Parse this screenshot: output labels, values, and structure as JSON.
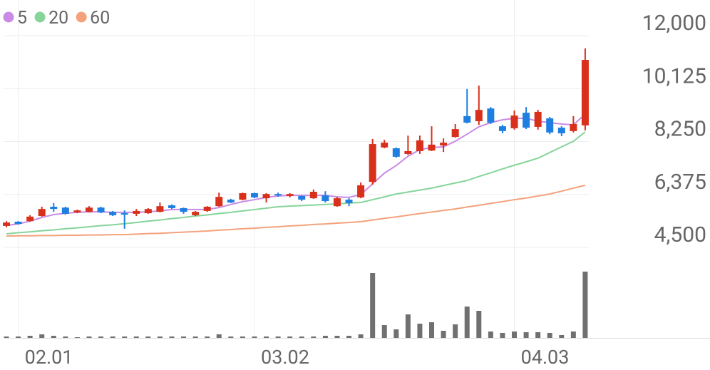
{
  "chart_data": {
    "type": "candlestick",
    "categories": [
      null,
      "02.01",
      null,
      null,
      null,
      null,
      null,
      null,
      null,
      null,
      null,
      null,
      null,
      null,
      null,
      null,
      null,
      null,
      null,
      null,
      null,
      "03.02",
      null,
      null,
      null,
      null,
      null,
      null,
      null,
      null,
      null,
      null,
      null,
      null,
      null,
      null,
      null,
      null,
      null,
      null,
      null,
      null,
      null,
      "04.03",
      null,
      null,
      null,
      null,
      null,
      null
    ],
    "open": [
      5260,
      5410,
      5430,
      5610,
      5940,
      5910,
      5740,
      5760,
      5910,
      5760,
      5710,
      5690,
      5710,
      5760,
      5990,
      5890,
      5640,
      5790,
      5960,
      6190,
      6190,
      6420,
      6240,
      6390,
      6320,
      6320,
      6240,
      6340,
      5960,
      6190,
      6270,
      6820,
      8040,
      8010,
      7810,
      7910,
      7930,
      8110,
      8410,
      9150,
      8970,
      9420,
      8790,
      8720,
      9270,
      8770,
      9070,
      8740,
      8620,
      8820
    ],
    "high": [
      5430,
      5430,
      5640,
      5940,
      6070,
      5940,
      5840,
      5960,
      5940,
      5790,
      5810,
      5860,
      5890,
      6090,
      6020,
      5910,
      5790,
      5960,
      6440,
      6220,
      6440,
      6440,
      6420,
      6440,
      6420,
      6340,
      6550,
      6490,
      6290,
      6240,
      6800,
      8340,
      8310,
      8040,
      8460,
      8460,
      8790,
      8360,
      8870,
      10110,
      10230,
      9470,
      8840,
      9350,
      9470,
      9370,
      9120,
      8790,
      9150,
      11550
    ],
    "low": [
      5210,
      5310,
      5410,
      5590,
      5760,
      5660,
      5710,
      5740,
      5710,
      5610,
      5160,
      5610,
      5690,
      5740,
      5860,
      5690,
      5610,
      5760,
      5940,
      6070,
      6170,
      6240,
      6090,
      6290,
      6270,
      6140,
      6220,
      6090,
      5940,
      5960,
      6240,
      6720,
      8010,
      7680,
      7780,
      7810,
      7910,
      7880,
      8390,
      8890,
      8840,
      8870,
      8540,
      8670,
      8690,
      8670,
      8510,
      8440,
      8570,
      8640
    ],
    "close": [
      5380,
      5330,
      5590,
      5860,
      5860,
      5690,
      5810,
      5910,
      5740,
      5640,
      5690,
      5790,
      5860,
      5960,
      5890,
      5760,
      5760,
      5940,
      6290,
      6090,
      6420,
      6270,
      6390,
      6340,
      6390,
      6190,
      6470,
      6140,
      6240,
      6070,
      6700,
      8160,
      8210,
      7710,
      7910,
      8290,
      8140,
      8210,
      8690,
      8920,
      9370,
      8920,
      8620,
      9170,
      8740,
      9300,
      8570,
      8540,
      8870,
      11140
    ],
    "up_color": "#d9301c",
    "down_color": "#1f7fe0",
    "series": [
      {
        "name": "5",
        "color": "#c98be6",
        "values": [
          5280,
          5330,
          5430,
          5560,
          5660,
          5710,
          5740,
          5760,
          5760,
          5740,
          5740,
          5740,
          5760,
          5790,
          5840,
          5840,
          5840,
          5840,
          5910,
          6020,
          6120,
          6190,
          6270,
          6320,
          6340,
          6340,
          6340,
          6340,
          6290,
          6270,
          6370,
          6750,
          7130,
          7400,
          7730,
          7960,
          8040,
          8060,
          8260,
          8510,
          8770,
          8920,
          9020,
          9070,
          9070,
          8970,
          8920,
          8870,
          8840,
          9220
        ]
      },
      {
        "name": "20",
        "color": "#86d49a",
        "values": [
          4980,
          5020,
          5050,
          5090,
          5120,
          5160,
          5190,
          5230,
          5270,
          5300,
          5340,
          5380,
          5430,
          5470,
          5520,
          5560,
          5610,
          5650,
          5700,
          5740,
          5790,
          5840,
          5890,
          5940,
          5960,
          5980,
          6000,
          6020,
          6040,
          6070,
          6090,
          6190,
          6290,
          6390,
          6460,
          6530,
          6600,
          6690,
          6780,
          6870,
          7010,
          7140,
          7280,
          7410,
          7530,
          7660,
          7860,
          8060,
          8260,
          8590
        ]
      },
      {
        "name": "60",
        "color": "#f3a27c",
        "values": [
          4900,
          4910,
          4910,
          4920,
          4920,
          4930,
          4930,
          4940,
          4940,
          4950,
          4950,
          4970,
          4990,
          5000,
          5020,
          5040,
          5060,
          5080,
          5110,
          5130,
          5160,
          5180,
          5210,
          5230,
          5260,
          5280,
          5310,
          5330,
          5360,
          5380,
          5410,
          5470,
          5530,
          5580,
          5640,
          5700,
          5750,
          5810,
          5860,
          5930,
          5990,
          6060,
          6120,
          6190,
          6250,
          6320,
          6390,
          6490,
          6600,
          6700
        ]
      }
    ],
    "volume": {
      "color": "#707070",
      "values": [
        2,
        2,
        3,
        5,
        3,
        2,
        1,
        2,
        2,
        2,
        2,
        2,
        2,
        2,
        2,
        2,
        2,
        2,
        5,
        2,
        2,
        2,
        2,
        2,
        2,
        2,
        2,
        3,
        3,
        3,
        5,
        91,
        18,
        12,
        33,
        20,
        22,
        10,
        19,
        44,
        38,
        9,
        7,
        9,
        8,
        8,
        7,
        4,
        9,
        93
      ]
    },
    "ylim": [
      4500,
      12000
    ],
    "yticks": [
      {
        "value": 4500,
        "label": "4,500"
      },
      {
        "value": 6375,
        "label": "6,375"
      },
      {
        "value": 8250,
        "label": "8,250"
      },
      {
        "value": 10125,
        "label": "10,125"
      },
      {
        "value": 12000,
        "label": "12,000"
      }
    ],
    "grid": true
  }
}
